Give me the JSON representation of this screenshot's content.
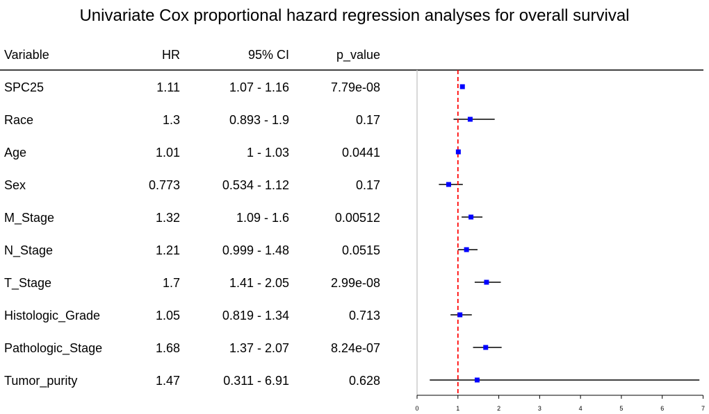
{
  "chart_data": {
    "type": "forest",
    "title": "Univariate Cox proportional hazard regression analyses for overall survival",
    "columns": [
      "Variable",
      "HR",
      "95% CI",
      "p_value"
    ],
    "rows": [
      {
        "variable": "SPC25",
        "hr": 1.11,
        "hr_text": "1.11",
        "lower": 1.07,
        "upper": 1.16,
        "ci_text": "1.07 - 1.16",
        "p_text": "7.79e-08"
      },
      {
        "variable": "Race",
        "hr": 1.3,
        "hr_text": "1.3",
        "lower": 0.893,
        "upper": 1.9,
        "ci_text": "0.893 - 1.9",
        "p_text": "0.17"
      },
      {
        "variable": "Age",
        "hr": 1.01,
        "hr_text": "1.01",
        "lower": 1,
        "upper": 1.03,
        "ci_text": "1 - 1.03",
        "p_text": "0.0441"
      },
      {
        "variable": "Sex",
        "hr": 0.773,
        "hr_text": "0.773",
        "lower": 0.534,
        "upper": 1.12,
        "ci_text": "0.534 - 1.12",
        "p_text": "0.17"
      },
      {
        "variable": "M_Stage",
        "hr": 1.32,
        "hr_text": "1.32",
        "lower": 1.09,
        "upper": 1.6,
        "ci_text": "1.09 - 1.6",
        "p_text": "0.00512"
      },
      {
        "variable": "N_Stage",
        "hr": 1.21,
        "hr_text": "1.21",
        "lower": 0.999,
        "upper": 1.48,
        "ci_text": "0.999 - 1.48",
        "p_text": "0.0515"
      },
      {
        "variable": "T_Stage",
        "hr": 1.7,
        "hr_text": "1.7",
        "lower": 1.41,
        "upper": 2.05,
        "ci_text": "1.41 - 2.05",
        "p_text": "2.99e-08"
      },
      {
        "variable": "Histologic_Grade",
        "hr": 1.05,
        "hr_text": "1.05",
        "lower": 0.819,
        "upper": 1.34,
        "ci_text": "0.819 - 1.34",
        "p_text": "0.713"
      },
      {
        "variable": "Pathologic_Stage",
        "hr": 1.68,
        "hr_text": "1.68",
        "lower": 1.37,
        "upper": 2.07,
        "ci_text": "1.37 - 2.07",
        "p_text": "8.24e-07"
      },
      {
        "variable": "Tumor_purity",
        "hr": 1.47,
        "hr_text": "1.47",
        "lower": 0.311,
        "upper": 6.91,
        "ci_text": "0.311 - 6.91",
        "p_text": "0.628"
      }
    ],
    "xlim": [
      0,
      7
    ],
    "xticks": [
      "0",
      "1",
      "2",
      "3",
      "4",
      "5",
      "6",
      "7"
    ],
    "reference_line": 1,
    "colors": {
      "point": "#0000ff",
      "reference": "#ff0000",
      "ci": "#000000",
      "zero_line": "#cccccc"
    }
  }
}
